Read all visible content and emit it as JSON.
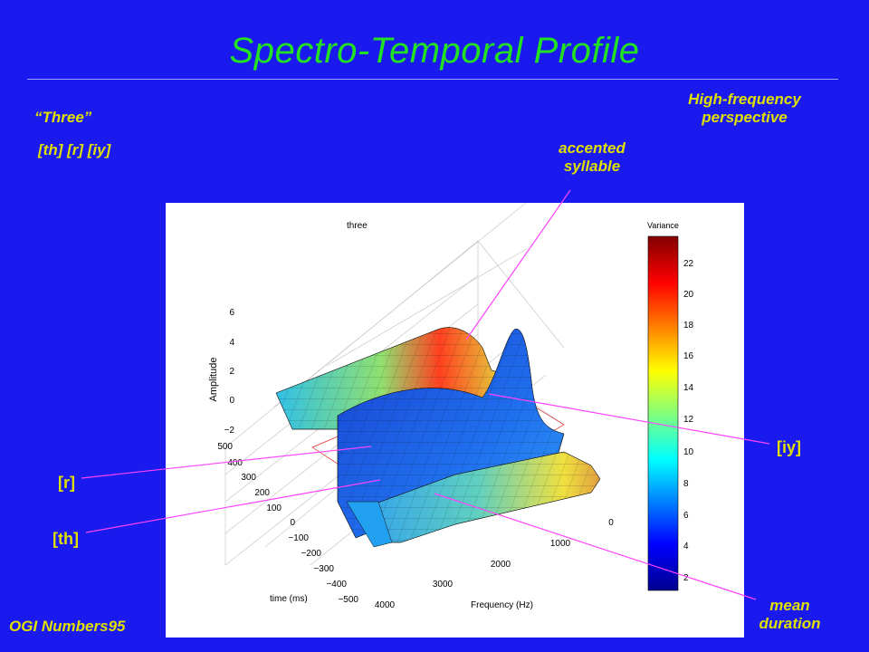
{
  "slide": {
    "title": "Spectro-Temporal Profile",
    "word": "“Three”",
    "phones": "[th] [r] [iy]",
    "perspective_line1": "High-frequency",
    "perspective_line2": "perspective",
    "accented_line1": "accented",
    "accented_line2": "syllable",
    "label_r": "[r]",
    "label_th": "[th]",
    "label_iy": "[iy]",
    "mean_line1": "mean",
    "mean_line2": "duration",
    "corpus": "OGI Numbers95"
  },
  "plot": {
    "title": "three",
    "zlabel": "Amplitude",
    "ylabel": "time (ms)",
    "xlabel": "Frequency (Hz)",
    "z_ticks": [
      "6",
      "4",
      "2",
      "0",
      "−2"
    ],
    "time_ticks": [
      "500",
      "400",
      "300",
      "200",
      "100",
      "0",
      "−100",
      "−200",
      "−300",
      "−400",
      "−500"
    ],
    "freq_ticks": [
      "0",
      "1000",
      "2000",
      "3000",
      "4000"
    ],
    "colorbar_title": "Variance",
    "colorbar_ticks": [
      "22",
      "20",
      "18",
      "16",
      "14",
      "12",
      "10",
      "8",
      "6",
      "4",
      "2"
    ]
  },
  "colors": {
    "background": "#1a1aee",
    "title_green": "#22e022",
    "label_yellow": "#e0e000",
    "callout_line": "#ff44ff"
  }
}
